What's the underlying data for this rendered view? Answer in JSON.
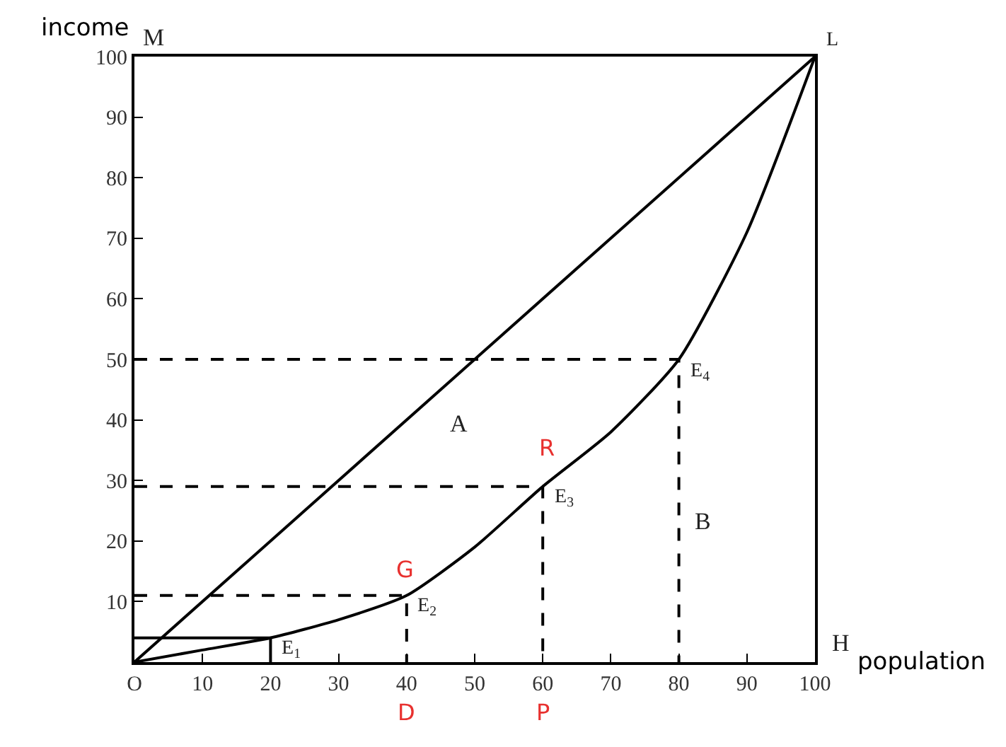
{
  "chart_data": {
    "type": "line",
    "xlabel": "population",
    "ylabel": "income",
    "xlim": [
      0,
      100
    ],
    "ylim": [
      0,
      100
    ],
    "xticks": [
      {
        "value": 0,
        "label": "O"
      },
      10,
      20,
      30,
      40,
      50,
      60,
      70,
      80,
      90,
      100
    ],
    "yticks": [
      10,
      20,
      30,
      40,
      50,
      60,
      70,
      80,
      90,
      100
    ],
    "marker": "none",
    "series": [
      {
        "color": "#000000",
        "x": [
          0,
          100
        ],
        "values": [
          0,
          100
        ],
        "line_style": "solid"
      },
      {
        "color": "#000000",
        "x": [
          0,
          10,
          20,
          30,
          40,
          50,
          60,
          70,
          80,
          90,
          100
        ],
        "values": [
          0,
          2,
          4,
          7,
          11,
          19,
          29,
          38,
          50,
          71,
          100
        ],
        "line_style": "solid"
      },
      {
        "color": "#000000",
        "x": [
          0,
          20,
          20
        ],
        "values": [
          4,
          4,
          0
        ],
        "line_style": "solid"
      },
      {
        "color": "#000000",
        "x": [
          0,
          40,
          40
        ],
        "values": [
          11,
          11,
          0
        ],
        "line_style": "dashed"
      },
      {
        "color": "#000000",
        "x": [
          0,
          60,
          60
        ],
        "values": [
          29,
          29,
          0
        ],
        "line_style": "dashed"
      },
      {
        "color": "#000000",
        "x": [
          0,
          80,
          80
        ],
        "values": [
          50,
          50,
          0
        ],
        "line_style": "dashed"
      }
    ],
    "annotations": [
      "M",
      "H",
      "A",
      "B",
      "G",
      "R",
      {
        "text": "L",
        "x": 100,
        "y": 100
      },
      {
        "text": "E$_{1}$",
        "x": 20,
        "y": 4
      },
      {
        "text": "E$_{2}$",
        "x": 40,
        "y": 11
      },
      {
        "text": "E$_{3}$",
        "x": 60,
        "y": 29
      },
      {
        "text": "E$_{4}$",
        "x": 80,
        "y": 50
      },
      {
        "text": "D",
        "x": 40,
        "y": 0
      },
      {
        "text": "P",
        "x": 60,
        "y": 0
      }
    ]
  }
}
